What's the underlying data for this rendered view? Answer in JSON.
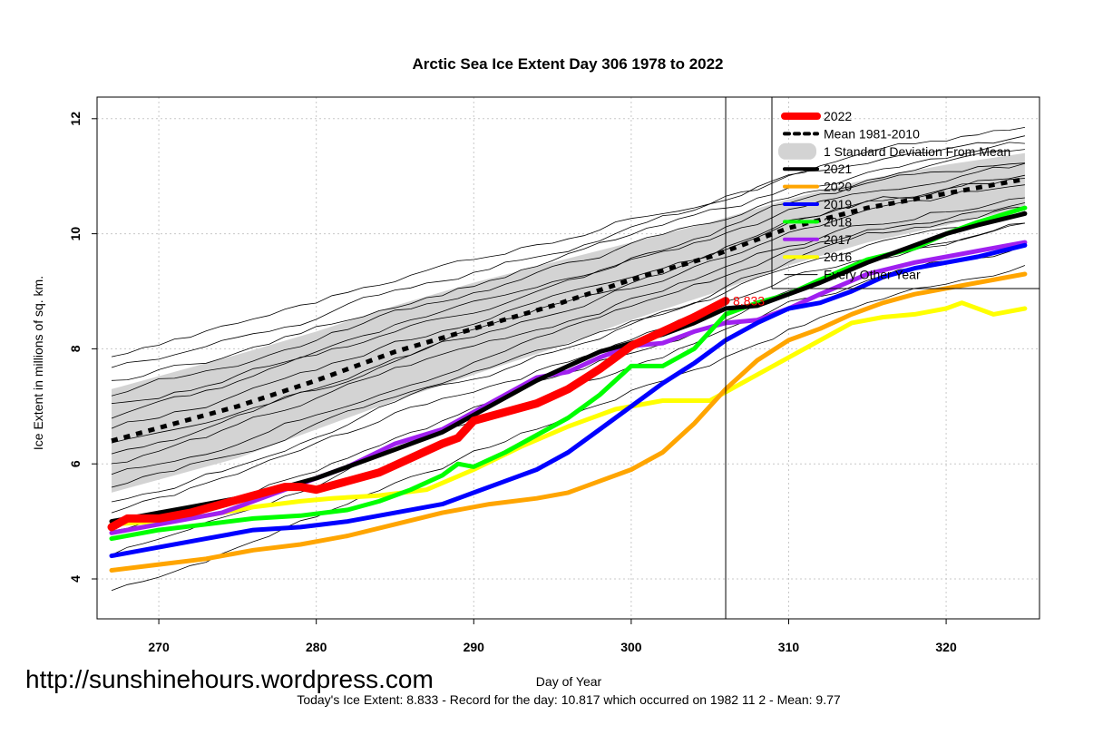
{
  "chart_data": {
    "type": "line",
    "title": "Arctic Sea Ice Extent Day 306 1978 to 2022",
    "xlabel": "Day of Year",
    "ylabel": "Ice Extent in millions of sq. km.",
    "xlim": [
      267,
      325
    ],
    "ylim": [
      3.3,
      12.4
    ],
    "x_ticks": [
      270,
      280,
      290,
      300,
      310,
      320
    ],
    "y_ticks": [
      4,
      6,
      8,
      10,
      12
    ],
    "grid": true,
    "legend_position": "top-right",
    "current_day": 306,
    "current_value_label": "8.833",
    "legend": [
      {
        "label": "2022",
        "color": "#ff0000",
        "style": "thick"
      },
      {
        "label": "Mean 1981-2010",
        "color": "#000000",
        "style": "dashed"
      },
      {
        "label": "1 Standard Deviation From Mean",
        "color": "#d3d3d3",
        "style": "band"
      },
      {
        "label": "2021",
        "color": "#000000",
        "style": "solid"
      },
      {
        "label": "2020",
        "color": "#ffa500",
        "style": "solid"
      },
      {
        "label": "2019",
        "color": "#0000ff",
        "style": "solid"
      },
      {
        "label": "2018",
        "color": "#00ff00",
        "style": "solid"
      },
      {
        "label": "2017",
        "color": "#a020f0",
        "style": "solid"
      },
      {
        "label": "2016",
        "color": "#ffff00",
        "style": "solid"
      },
      {
        "label": "Every Other Year",
        "color": "#000000",
        "style": "thin"
      }
    ],
    "mean": {
      "x": [
        267,
        275,
        280,
        285,
        290,
        295,
        300,
        305,
        310,
        315,
        320,
        325
      ],
      "values": [
        6.4,
        7.0,
        7.45,
        7.95,
        8.35,
        8.75,
        9.2,
        9.6,
        10.1,
        10.45,
        10.7,
        10.95
      ]
    },
    "std_band": {
      "x": [
        267,
        275,
        280,
        285,
        290,
        295,
        300,
        305,
        310,
        315,
        320,
        325
      ],
      "lower": [
        5.5,
        6.1,
        6.6,
        7.1,
        7.55,
        8.0,
        8.5,
        8.95,
        9.45,
        9.85,
        10.15,
        10.45
      ],
      "upper": [
        7.3,
        7.9,
        8.3,
        8.75,
        9.15,
        9.5,
        9.85,
        10.2,
        10.6,
        10.95,
        11.2,
        11.4
      ]
    },
    "series": [
      {
        "name": "2022",
        "color": "#ff0000",
        "width": 9,
        "x": [
          267,
          268,
          270,
          272,
          274,
          276,
          278,
          279,
          280,
          282,
          284,
          286,
          288,
          289,
          290,
          292,
          294,
          296,
          298,
          300,
          302,
          304,
          306
        ],
        "values": [
          4.9,
          5.05,
          5.05,
          5.15,
          5.3,
          5.45,
          5.6,
          5.6,
          5.55,
          5.7,
          5.85,
          6.1,
          6.35,
          6.45,
          6.75,
          6.9,
          7.05,
          7.3,
          7.65,
          8.05,
          8.3,
          8.55,
          8.833
        ]
      },
      {
        "name": "2021",
        "color": "#000000",
        "width": 5,
        "x": [
          267,
          270,
          272,
          275,
          278,
          280,
          282,
          285,
          288,
          290,
          292,
          294,
          296,
          298,
          300,
          302,
          304,
          306,
          308,
          310,
          312,
          315,
          318,
          320,
          322,
          325
        ],
        "values": [
          5.0,
          5.15,
          5.25,
          5.4,
          5.6,
          5.75,
          5.95,
          6.25,
          6.55,
          6.85,
          7.15,
          7.45,
          7.7,
          7.95,
          8.1,
          8.25,
          8.45,
          8.7,
          8.75,
          8.95,
          9.15,
          9.5,
          9.8,
          10.0,
          10.15,
          10.35
        ]
      },
      {
        "name": "2020",
        "color": "#ffa500",
        "width": 5,
        "x": [
          267,
          270,
          273,
          276,
          279,
          282,
          285,
          288,
          291,
          294,
          296,
          298,
          300,
          302,
          304,
          306,
          308,
          310,
          312,
          314,
          316,
          318,
          320,
          322,
          325
        ],
        "values": [
          4.15,
          4.25,
          4.35,
          4.5,
          4.6,
          4.75,
          4.95,
          5.15,
          5.3,
          5.4,
          5.5,
          5.7,
          5.9,
          6.2,
          6.7,
          7.3,
          7.8,
          8.15,
          8.35,
          8.6,
          8.8,
          8.95,
          9.05,
          9.15,
          9.3
        ]
      },
      {
        "name": "2019",
        "color": "#0000ff",
        "width": 5,
        "x": [
          267,
          270,
          273,
          276,
          279,
          282,
          285,
          288,
          290,
          292,
          294,
          296,
          298,
          300,
          302,
          304,
          306,
          308,
          310,
          312,
          314,
          316,
          318,
          320,
          322,
          325
        ],
        "values": [
          4.4,
          4.55,
          4.7,
          4.85,
          4.9,
          5.0,
          5.15,
          5.3,
          5.5,
          5.7,
          5.9,
          6.2,
          6.6,
          7.0,
          7.4,
          7.75,
          8.15,
          8.45,
          8.7,
          8.8,
          9.0,
          9.25,
          9.4,
          9.5,
          9.6,
          9.8
        ]
      },
      {
        "name": "2018",
        "color": "#00ff00",
        "width": 5,
        "x": [
          267,
          270,
          273,
          276,
          279,
          282,
          284,
          286,
          288,
          289,
          290,
          292,
          294,
          296,
          298,
          300,
          302,
          304,
          306,
          308,
          310,
          312,
          315,
          318,
          320,
          322,
          325
        ],
        "values": [
          4.7,
          4.85,
          4.95,
          5.05,
          5.1,
          5.2,
          5.35,
          5.55,
          5.8,
          6.0,
          5.95,
          6.2,
          6.5,
          6.8,
          7.2,
          7.7,
          7.7,
          8.0,
          8.6,
          8.8,
          8.95,
          9.2,
          9.55,
          9.75,
          10.0,
          10.2,
          10.45
        ]
      },
      {
        "name": "2017",
        "color": "#a020f0",
        "width": 5,
        "x": [
          267,
          270,
          274,
          278,
          280,
          282,
          285,
          288,
          290,
          292,
          294,
          296,
          298,
          300,
          302,
          304,
          306,
          308,
          310,
          312,
          315,
          318,
          320,
          322,
          325
        ],
        "values": [
          4.8,
          4.95,
          5.15,
          5.55,
          5.75,
          5.95,
          6.35,
          6.6,
          6.9,
          7.2,
          7.5,
          7.6,
          7.85,
          8.05,
          8.1,
          8.3,
          8.45,
          8.5,
          8.7,
          8.95,
          9.3,
          9.5,
          9.6,
          9.7,
          9.85
        ]
      },
      {
        "name": "2016",
        "color": "#ffff00",
        "width": 5,
        "x": [
          267,
          270,
          273,
          276,
          279,
          281,
          284,
          287,
          290,
          293,
          296,
          299,
          302,
          305,
          308,
          310,
          312,
          314,
          316,
          318,
          320,
          321,
          323,
          325
        ],
        "values": [
          4.95,
          5.0,
          5.1,
          5.25,
          5.35,
          5.4,
          5.45,
          5.55,
          5.9,
          6.3,
          6.65,
          6.95,
          7.1,
          7.1,
          7.55,
          7.85,
          8.15,
          8.45,
          8.55,
          8.6,
          8.7,
          8.8,
          8.6,
          8.7
        ]
      }
    ]
  },
  "footer": {
    "url": "http://sunshinehours.wordpress.com",
    "stats": "Today's Ice Extent: 8.833  - Record for the day: 10.817 which occurred on 1982 11 2  - Mean: 9.77"
  }
}
